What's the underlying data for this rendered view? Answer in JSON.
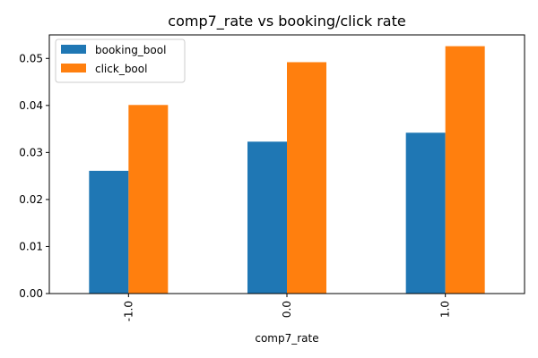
{
  "chart_data": {
    "type": "bar",
    "title": "comp7_rate vs booking/click rate",
    "xlabel": "comp7_rate",
    "ylabel": "",
    "categories": [
      "-1.0",
      "0.0",
      "1.0"
    ],
    "series": [
      {
        "name": "booking_bool",
        "color": "#1f77b4",
        "values": [
          0.0261,
          0.0323,
          0.0342
        ]
      },
      {
        "name": "click_bool",
        "color": "#ff7f0e",
        "values": [
          0.0401,
          0.0492,
          0.0526
        ]
      }
    ],
    "ylim": [
      0,
      0.055
    ],
    "yticks": [
      0.0,
      0.01,
      0.02,
      0.03,
      0.04,
      0.05
    ],
    "ytick_labels": [
      "0.00",
      "0.01",
      "0.02",
      "0.03",
      "0.04",
      "0.05"
    ],
    "legend": "top-left",
    "grid": false
  }
}
